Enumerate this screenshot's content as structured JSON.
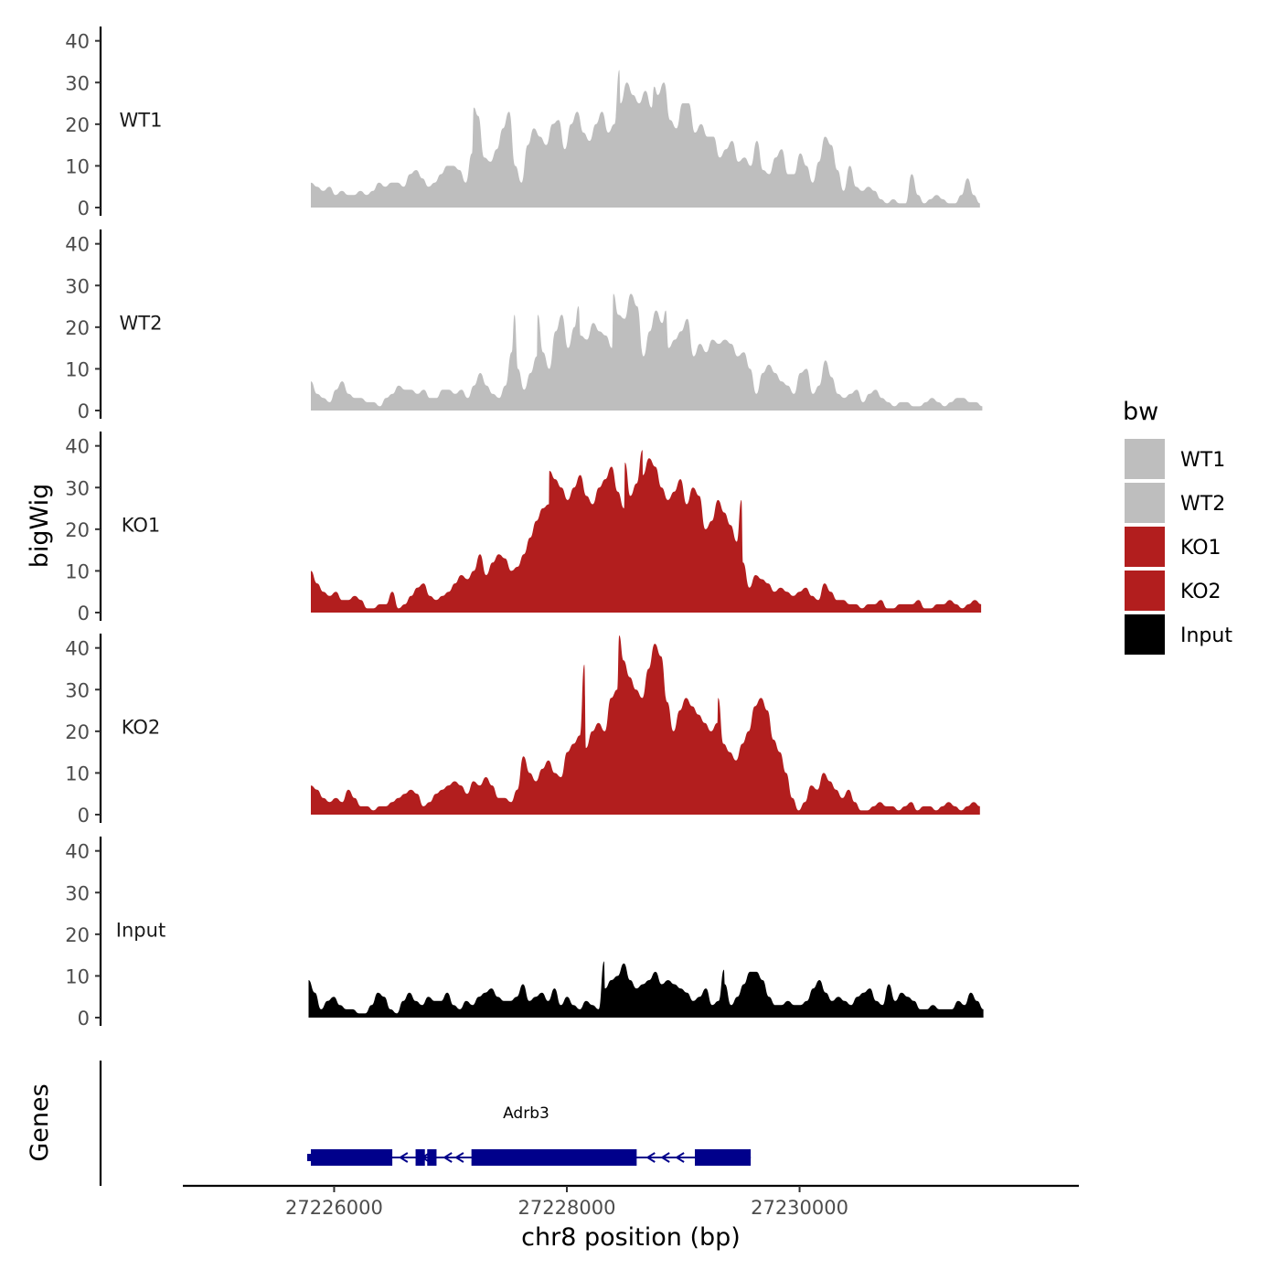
{
  "chart_data": {
    "type": "area",
    "xlabel": "chr8 position (bp)",
    "ylabel": "bigWig",
    "gene_track_label": "Genes",
    "xlim": [
      27224700,
      27232400
    ],
    "x_ticks": [
      27226000,
      27228000,
      27230000
    ],
    "x_tick_labels": [
      "27226000",
      "27228000",
      "27230000"
    ],
    "ylim": [
      0,
      43
    ],
    "y_ticks": [
      0,
      10,
      20,
      30,
      40
    ],
    "y_tick_labels": [
      "0",
      "10",
      "20",
      "30",
      "40"
    ],
    "legend": {
      "title": "bw",
      "position": "right",
      "entries": [
        {
          "label": "WT1",
          "color": "#bebebe"
        },
        {
          "label": "WT2",
          "color": "#bebebe"
        },
        {
          "label": "KO1",
          "color": "#b21e1e"
        },
        {
          "label": "KO2",
          "color": "#b21e1e"
        },
        {
          "label": "Input",
          "color": "#000000"
        }
      ]
    },
    "series": [
      {
        "name": "WT1",
        "color": "#bebebe",
        "x_start": 27225800,
        "x_end": 27231550,
        "values": [
          6,
          5,
          4,
          5,
          3,
          4,
          3,
          3,
          4,
          3,
          4,
          6,
          5,
          6,
          6,
          5,
          8,
          9,
          7,
          5,
          6,
          8,
          10,
          10,
          9,
          6,
          13,
          22,
          12,
          11,
          14,
          19,
          23,
          10,
          6,
          15,
          19,
          17,
          15,
          20,
          21,
          14,
          20,
          23,
          18,
          16,
          20,
          23,
          18,
          20,
          25,
          30,
          27,
          25,
          28,
          24,
          27,
          30,
          21,
          19,
          25,
          25,
          18,
          20,
          17,
          17,
          12,
          14,
          16,
          11,
          12,
          10,
          16,
          9,
          8,
          12,
          14,
          8,
          8,
          13,
          10,
          6,
          11,
          17,
          15,
          9,
          4,
          10,
          5,
          4,
          5,
          4,
          2,
          1,
          2,
          1,
          1,
          8,
          3,
          1,
          2,
          3,
          2,
          1,
          1,
          3,
          7,
          3,
          1
        ],
        "peaks": [
          [
            27227200,
            24
          ],
          [
            27228450,
            33
          ],
          [
            27228750,
            29
          ]
        ]
      },
      {
        "name": "WT2",
        "color": "#bebebe",
        "x_start": 27225800,
        "x_end": 27231570,
        "values": [
          7,
          4,
          3,
          2,
          5,
          7,
          4,
          3,
          3,
          2,
          2,
          1,
          3,
          4,
          6,
          5,
          5,
          4,
          5,
          3,
          3,
          5,
          5,
          4,
          5,
          3,
          6,
          9,
          6,
          4,
          3,
          6,
          14,
          10,
          5,
          9,
          13,
          14,
          10,
          19,
          23,
          15,
          20,
          18,
          17,
          21,
          19,
          18,
          15,
          23,
          22,
          28,
          25,
          13,
          19,
          24,
          21,
          15,
          17,
          19,
          22,
          13,
          16,
          14,
          17,
          16,
          17,
          16,
          13,
          14,
          10,
          4,
          9,
          11,
          9,
          7,
          6,
          4,
          9,
          10,
          4,
          6,
          12,
          8,
          4,
          3,
          4,
          5,
          2,
          4,
          5,
          3,
          2,
          1,
          2,
          2,
          1,
          1,
          2,
          3,
          2,
          1,
          2,
          3,
          3,
          2,
          2,
          1
        ],
        "peaks": [
          [
            27227550,
            23
          ],
          [
            27227750,
            23
          ],
          [
            27228100,
            25
          ],
          [
            27228400,
            28
          ],
          [
            27228850,
            24
          ]
        ]
      },
      {
        "name": "KO1",
        "color": "#b21e1e",
        "x_start": 27225800,
        "x_end": 27231560,
        "values": [
          10,
          7,
          5,
          4,
          5,
          3,
          3,
          4,
          3,
          1,
          1,
          2,
          2,
          5,
          1,
          2,
          4,
          6,
          7,
          4,
          3,
          4,
          5,
          7,
          9,
          8,
          10,
          14,
          9,
          12,
          14,
          13,
          10,
          11,
          14,
          18,
          22,
          25,
          26,
          32,
          30,
          27,
          30,
          33,
          28,
          26,
          30,
          32,
          35,
          29,
          25,
          28,
          31,
          33,
          37,
          35,
          30,
          27,
          29,
          32,
          26,
          30,
          28,
          20,
          22,
          27,
          24,
          21,
          17,
          12,
          6,
          9,
          8,
          7,
          5,
          6,
          5,
          4,
          5,
          6,
          4,
          3,
          7,
          5,
          3,
          3,
          2,
          2,
          1,
          2,
          2,
          3,
          1,
          1,
          2,
          2,
          2,
          3,
          1,
          1,
          2,
          2,
          3,
          2,
          1,
          2,
          3,
          2
        ],
        "peaks": [
          [
            27227850,
            34
          ],
          [
            27228500,
            36
          ],
          [
            27228650,
            39
          ],
          [
            27229500,
            27
          ]
        ]
      },
      {
        "name": "KO2",
        "color": "#b21e1e",
        "x_start": 27225800,
        "x_end": 27231550,
        "values": [
          7,
          6,
          4,
          3,
          4,
          3,
          6,
          4,
          2,
          2,
          1,
          2,
          2,
          3,
          4,
          5,
          6,
          5,
          2,
          3,
          5,
          6,
          7,
          8,
          7,
          5,
          8,
          7,
          9,
          7,
          4,
          4,
          3,
          6,
          14,
          10,
          8,
          11,
          13,
          10,
          9,
          15,
          17,
          19,
          16,
          20,
          22,
          20,
          28,
          30,
          37,
          33,
          30,
          28,
          35,
          41,
          38,
          27,
          20,
          25,
          28,
          26,
          24,
          22,
          20,
          22,
          17,
          15,
          13,
          17,
          20,
          26,
          28,
          25,
          18,
          15,
          10,
          4,
          1,
          3,
          7,
          6,
          10,
          8,
          6,
          4,
          6,
          3,
          1,
          1,
          2,
          3,
          2,
          2,
          1,
          2,
          3,
          1,
          2,
          2,
          1,
          2,
          3,
          2,
          1,
          2,
          3,
          2
        ],
        "peaks": [
          [
            27228150,
            36
          ],
          [
            27228450,
            43
          ],
          [
            27229300,
            28
          ]
        ]
      },
      {
        "name": "Input",
        "color": "#000000",
        "x_start": 27225780,
        "x_end": 27231580,
        "values": [
          9,
          6,
          2,
          4,
          5,
          3,
          2,
          2,
          1,
          1,
          3,
          6,
          5,
          2,
          1,
          4,
          6,
          4,
          3,
          5,
          4,
          4,
          6,
          3,
          2,
          4,
          3,
          5,
          6,
          7,
          5,
          4,
          4,
          5,
          8,
          4,
          5,
          6,
          4,
          7,
          3,
          5,
          3,
          2,
          4,
          3,
          2,
          7,
          9,
          10,
          13,
          9,
          7,
          8,
          9,
          11,
          8,
          9,
          8,
          7,
          6,
          4,
          5,
          7,
          3,
          4,
          8,
          3,
          5,
          8,
          11,
          11,
          9,
          5,
          3,
          3,
          4,
          3,
          3,
          4,
          7,
          9,
          6,
          4,
          5,
          4,
          3,
          5,
          6,
          7,
          4,
          3,
          8,
          4,
          6,
          5,
          4,
          2,
          2,
          3,
          2,
          2,
          2,
          4,
          3,
          6,
          4,
          2
        ],
        "peaks": [
          [
            27228320,
            13.5
          ],
          [
            27229350,
            11.5
          ]
        ]
      }
    ],
    "genes": [
      {
        "name": "Adrb3",
        "strand": "-",
        "label_x": 27227650,
        "start": 27225800,
        "end": 27229580,
        "exons": [
          [
            27225800,
            27226500
          ],
          [
            27226700,
            27226780
          ],
          [
            27226800,
            27226880
          ],
          [
            27227180,
            27228600
          ],
          [
            27229100,
            27229580
          ]
        ],
        "thick": [
          [
            27226000,
            27226500
          ],
          [
            27227200,
            27228550
          ]
        ]
      }
    ]
  }
}
